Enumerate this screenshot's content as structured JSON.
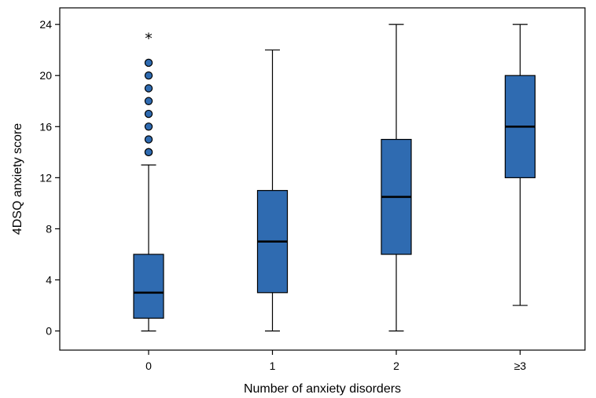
{
  "chart_data": {
    "type": "box",
    "xlabel": "Number of anxiety disorders",
    "ylabel": "4DSQ anxiety score",
    "categories": [
      "0",
      "1",
      "2",
      "≥3"
    ],
    "ylim": [
      -1.5,
      25.3
    ],
    "yticks": [
      0,
      4,
      8,
      12,
      16,
      20,
      24
    ],
    "box_color": "#2f6bb1",
    "grid": false,
    "boxes": [
      {
        "category": "0",
        "whisker_low": 0,
        "q1": 1,
        "median": 3,
        "q3": 6,
        "whisker_high": 13,
        "outliers": [
          14,
          14,
          15,
          16,
          17,
          18,
          19,
          20,
          21
        ],
        "extremes": [
          23
        ]
      },
      {
        "category": "1",
        "whisker_low": 0,
        "q1": 3,
        "median": 7,
        "q3": 11,
        "whisker_high": 22,
        "outliers": [],
        "extremes": []
      },
      {
        "category": "2",
        "whisker_low": 0,
        "q1": 6,
        "median": 10.5,
        "q3": 15,
        "whisker_high": 24,
        "outliers": [],
        "extremes": []
      },
      {
        "category": "≥3",
        "whisker_low": 2,
        "q1": 12,
        "median": 16,
        "q3": 20,
        "whisker_high": 24,
        "outliers": [],
        "extremes": []
      }
    ]
  }
}
